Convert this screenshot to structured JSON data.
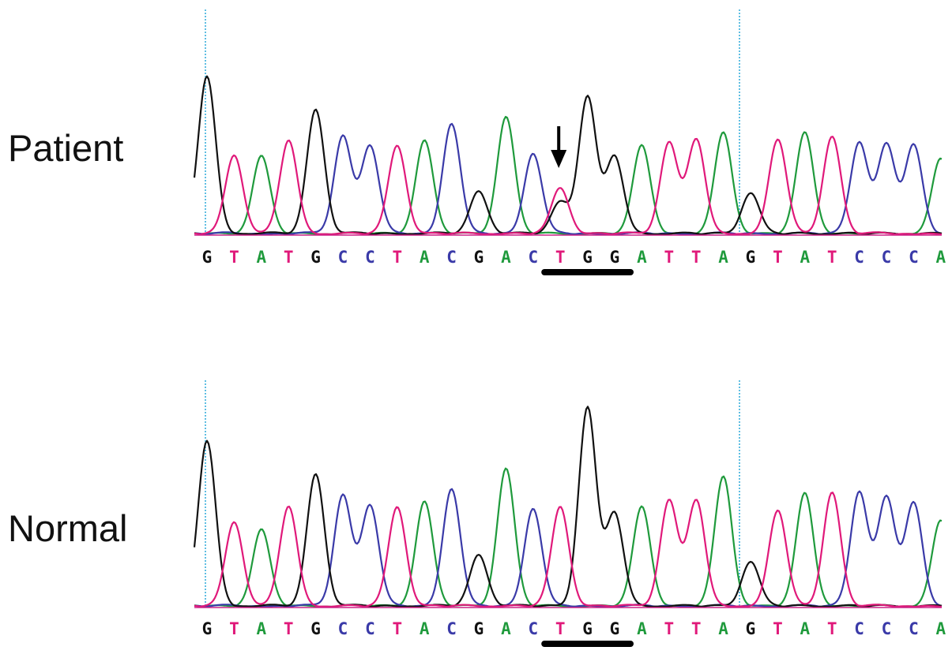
{
  "colors": {
    "A": "#1f9a3c",
    "C": "#3a3aa8",
    "G": "#111111",
    "T": "#e0197a",
    "baseline": "#cc2288",
    "marker": "#2aa8d8",
    "underline": "#000000",
    "arrow": "#000000"
  },
  "panels": [
    {
      "id": "patient",
      "label": "Patient",
      "sequence": [
        "G",
        "T",
        "A",
        "T",
        "G",
        "C",
        "C",
        "T",
        "A",
        "C",
        "G",
        "A",
        "C",
        "T",
        "G",
        "G",
        "A",
        "T",
        "T",
        "A",
        "G",
        "T",
        "A",
        "T",
        "C",
        "C",
        "C",
        "A"
      ],
      "heights": [
        1.0,
        0.5,
        0.49,
        0.59,
        0.79,
        0.62,
        0.56,
        0.56,
        0.59,
        0.7,
        0.27,
        0.74,
        0.51,
        0.29,
        0.87,
        0.49,
        0.56,
        0.58,
        0.6,
        0.64,
        0.26,
        0.6,
        0.64,
        0.62,
        0.58,
        0.56,
        0.56,
        0.48
      ],
      "secondary_peak": {
        "index": 13,
        "base": "G",
        "height": 0.2
      },
      "mutation_arrow": true,
      "underline_codon": [
        13,
        15
      ]
    },
    {
      "id": "normal",
      "label": "Normal",
      "sequence": [
        "G",
        "T",
        "A",
        "T",
        "G",
        "C",
        "C",
        "T",
        "A",
        "C",
        "G",
        "A",
        "C",
        "T",
        "G",
        "G",
        "A",
        "T",
        "T",
        "A",
        "G",
        "T",
        "A",
        "T",
        "C",
        "C",
        "C",
        "A"
      ],
      "heights": [
        1.0,
        0.51,
        0.46,
        0.6,
        0.8,
        0.67,
        0.61,
        0.6,
        0.63,
        0.71,
        0.31,
        0.83,
        0.59,
        0.6,
        1.2,
        0.56,
        0.6,
        0.64,
        0.64,
        0.78,
        0.27,
        0.58,
        0.68,
        0.69,
        0.69,
        0.65,
        0.62,
        0.52
      ],
      "secondary_peak": null,
      "mutation_arrow": false,
      "underline_codon": [
        13,
        15
      ]
    }
  ]
}
